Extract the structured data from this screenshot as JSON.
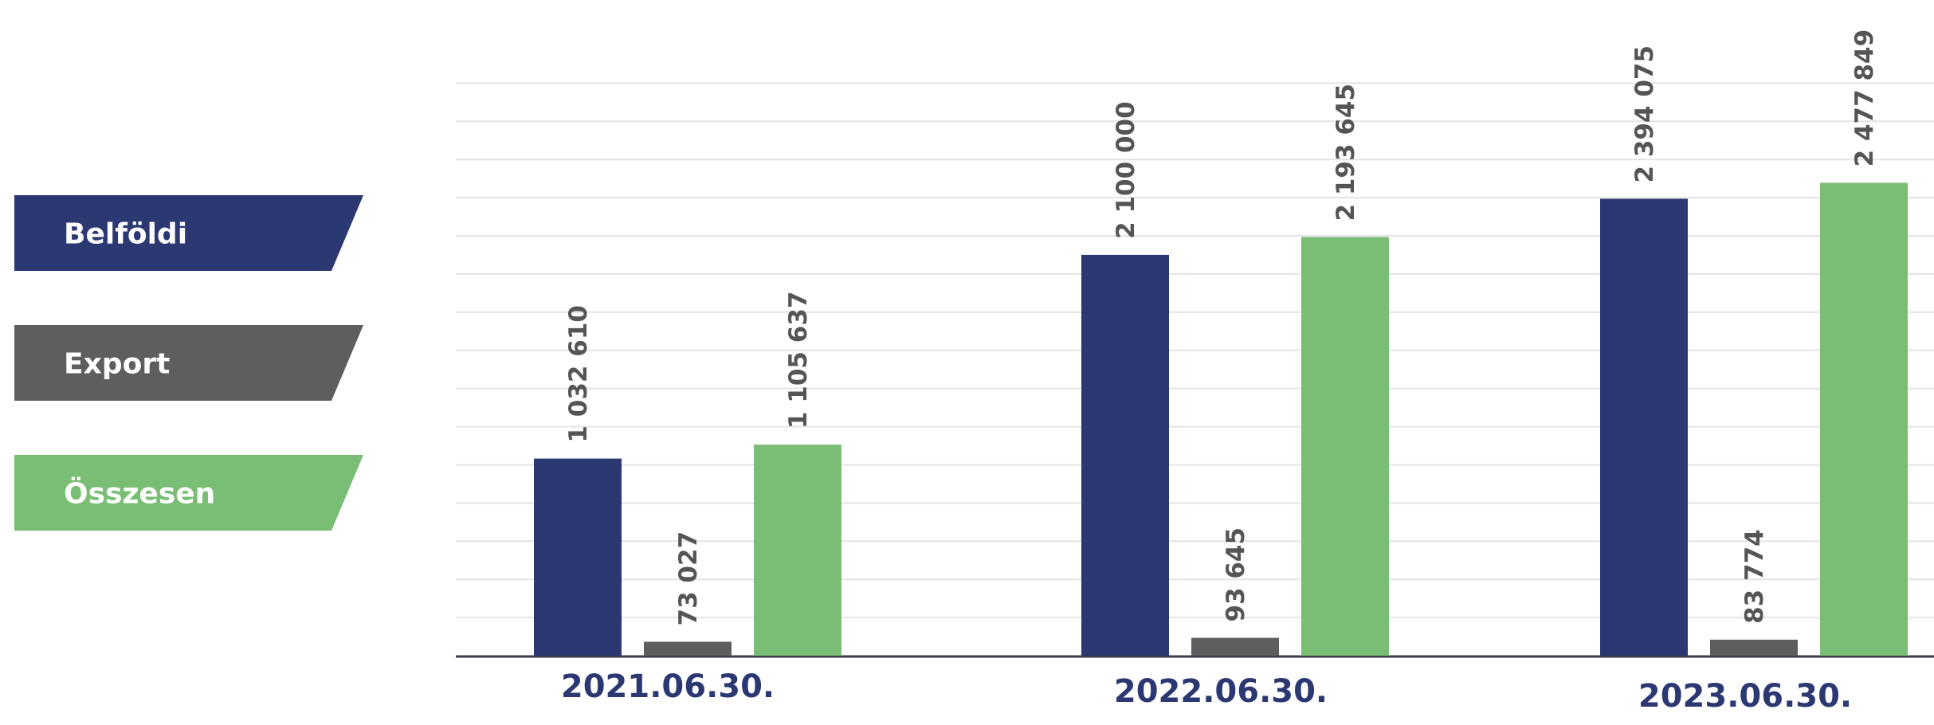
{
  "chart_data": {
    "type": "bar",
    "categories": [
      "2021.06.30.",
      "2022.06.30.",
      "2023.06.30."
    ],
    "series": [
      {
        "name": "Belföldi",
        "values": [
          1032610,
          2100000,
          2394075
        ],
        "labels": [
          "1 032 610",
          "2 100 000",
          "2 394 075"
        ],
        "color": "#2c3872"
      },
      {
        "name": "Export",
        "values": [
          73027,
          93645,
          83774
        ],
        "labels": [
          "73 027",
          "93 645",
          "83 774"
        ],
        "color": "#5e5e60"
      },
      {
        "name": "Összesen",
        "values": [
          1105637,
          2193645,
          2477849
        ],
        "labels": [
          "1 105 637",
          "2 193 645",
          "2 477 849"
        ],
        "color": "#7abd74"
      }
    ],
    "ylim": [
      0,
      3000000
    ],
    "grid": true,
    "legend": "left",
    "label_color": "#555555",
    "category_label_color": "#2c3872",
    "gridline_color": "#e4e4e4",
    "axis_color": "#3a3a4a"
  }
}
